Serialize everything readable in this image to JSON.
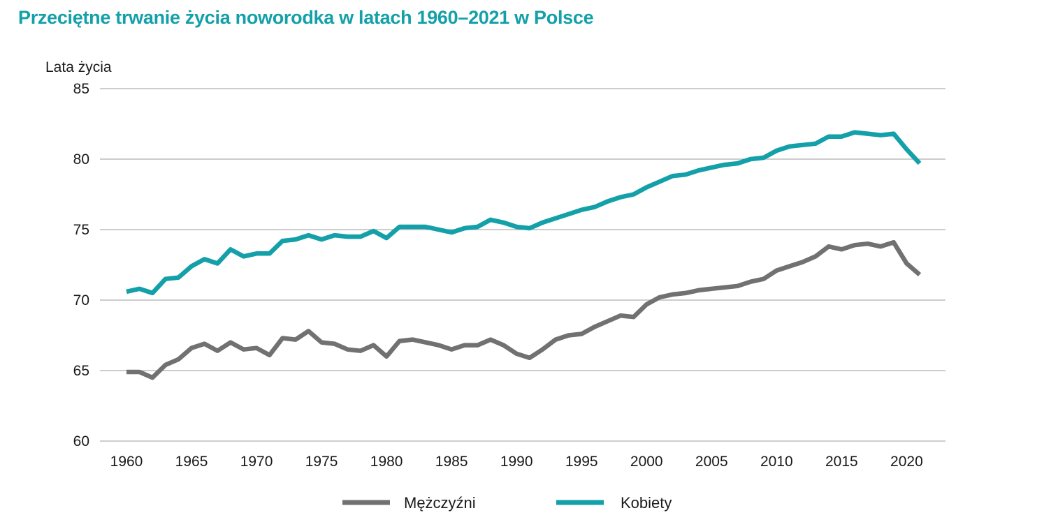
{
  "chart_data": {
    "type": "line",
    "title": "Przeciętne trwanie życia noworodka w latach 1960–2021 w Polsce",
    "ylabel": "Lata życia",
    "xlabel": "",
    "ylim": [
      60,
      85
    ],
    "yticks": [
      60,
      65,
      70,
      75,
      80,
      85
    ],
    "xticks": [
      1960,
      1965,
      1970,
      1975,
      1980,
      1985,
      1990,
      1995,
      2000,
      2005,
      2010,
      2015,
      2020
    ],
    "grid": "horizontal",
    "legend_position": "bottom",
    "x": [
      1960,
      1961,
      1962,
      1963,
      1964,
      1965,
      1966,
      1967,
      1968,
      1969,
      1970,
      1971,
      1972,
      1973,
      1974,
      1975,
      1976,
      1977,
      1978,
      1979,
      1980,
      1981,
      1982,
      1983,
      1984,
      1985,
      1986,
      1987,
      1988,
      1989,
      1990,
      1991,
      1992,
      1993,
      1994,
      1995,
      1996,
      1997,
      1998,
      1999,
      2000,
      2001,
      2002,
      2003,
      2004,
      2005,
      2006,
      2007,
      2008,
      2009,
      2010,
      2011,
      2012,
      2013,
      2014,
      2015,
      2016,
      2017,
      2018,
      2019,
      2020,
      2021
    ],
    "series": [
      {
        "name": "Mężczyźni",
        "color": "#717171",
        "values": [
          64.9,
          64.9,
          64.5,
          65.4,
          65.8,
          66.6,
          66.9,
          66.4,
          67.0,
          66.5,
          66.6,
          66.1,
          67.3,
          67.2,
          67.8,
          67.0,
          66.9,
          66.5,
          66.4,
          66.8,
          66.0,
          67.1,
          67.2,
          67.0,
          66.8,
          66.5,
          66.8,
          66.8,
          67.2,
          66.8,
          66.2,
          65.9,
          66.5,
          67.2,
          67.5,
          67.6,
          68.1,
          68.5,
          68.9,
          68.8,
          69.7,
          70.2,
          70.4,
          70.5,
          70.7,
          70.8,
          70.9,
          71.0,
          71.3,
          71.5,
          72.1,
          72.4,
          72.7,
          73.1,
          73.8,
          73.6,
          73.9,
          74.0,
          73.8,
          74.1,
          72.6,
          71.8
        ]
      },
      {
        "name": "Kobiety",
        "color": "#13a0a9",
        "values": [
          70.6,
          70.8,
          70.5,
          71.5,
          71.6,
          72.4,
          72.9,
          72.6,
          73.6,
          73.1,
          73.3,
          73.3,
          74.2,
          74.3,
          74.6,
          74.3,
          74.6,
          74.5,
          74.5,
          74.9,
          74.4,
          75.2,
          75.2,
          75.2,
          75.0,
          74.8,
          75.1,
          75.2,
          75.7,
          75.5,
          75.2,
          75.1,
          75.5,
          75.8,
          76.1,
          76.4,
          76.6,
          77.0,
          77.3,
          77.5,
          78.0,
          78.4,
          78.8,
          78.9,
          79.2,
          79.4,
          79.6,
          79.7,
          80.0,
          80.1,
          80.6,
          80.9,
          81.0,
          81.1,
          81.6,
          81.6,
          81.9,
          81.8,
          81.7,
          81.8,
          80.7,
          79.7
        ]
      }
    ]
  }
}
